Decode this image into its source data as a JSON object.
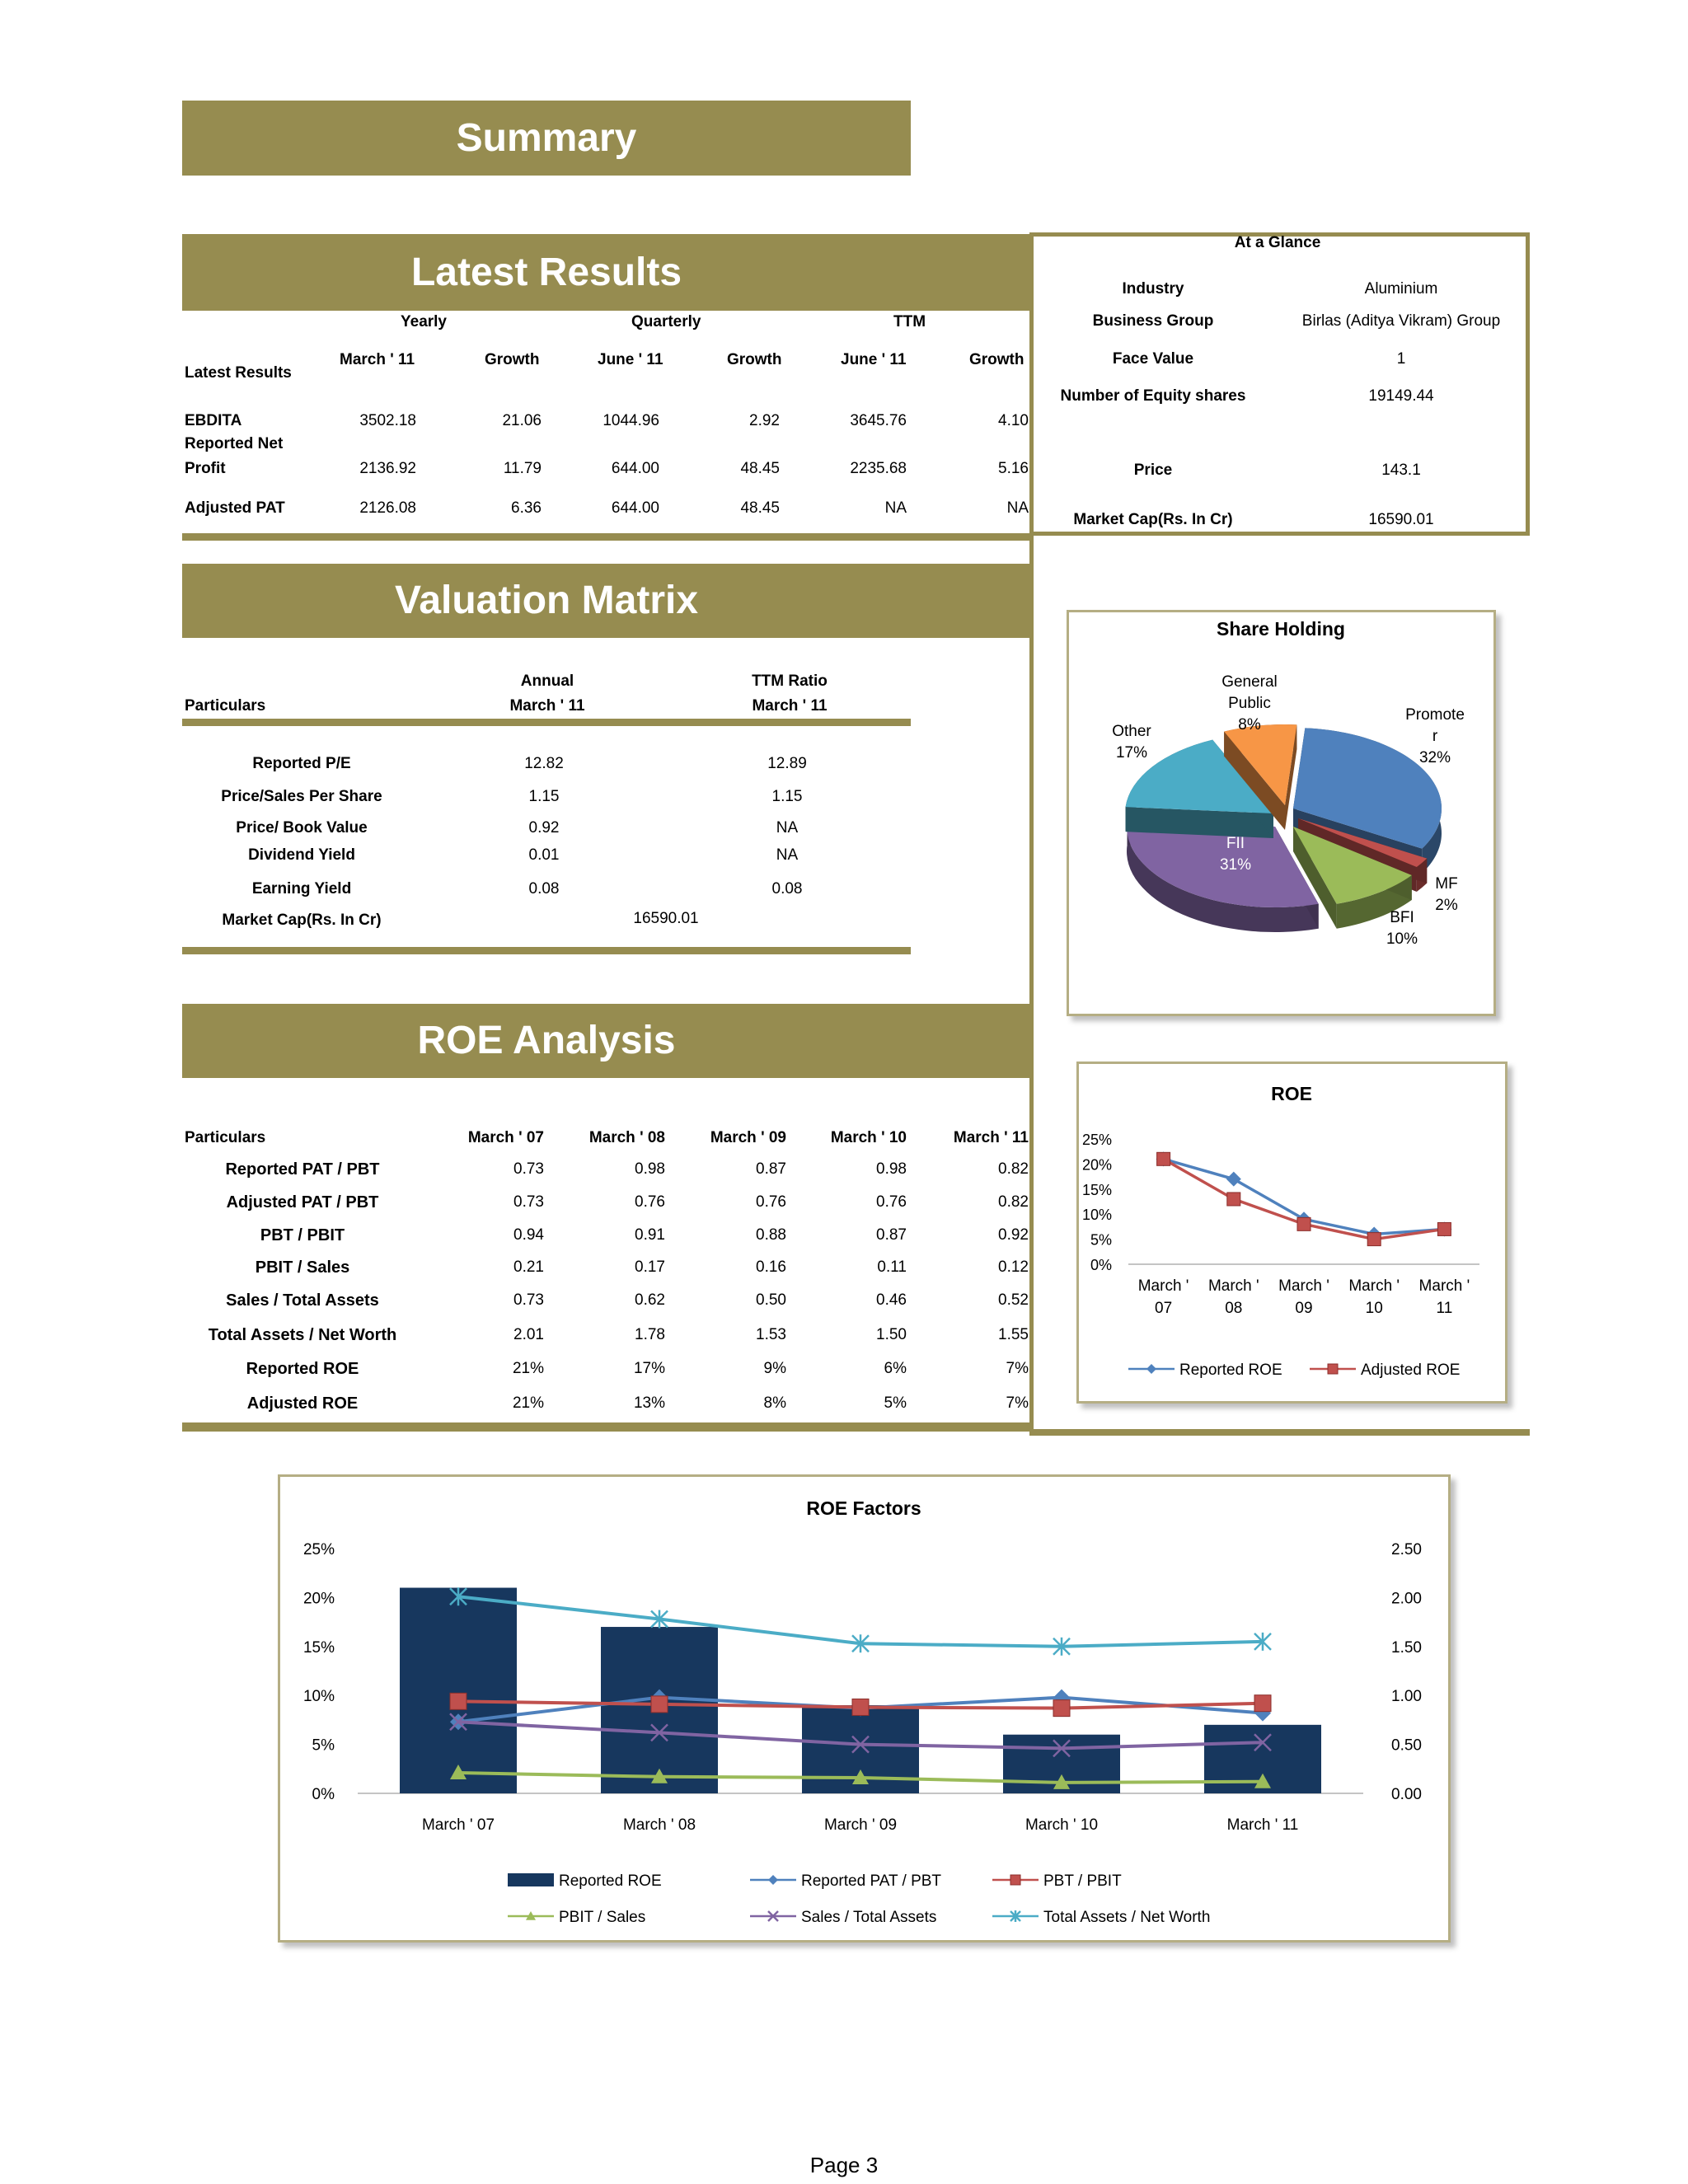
{
  "summary": {
    "title": "Summary"
  },
  "latest_results": {
    "title": "Latest Results",
    "groups": [
      "Yearly",
      "Quarterly",
      "TTM"
    ],
    "col_headers": [
      "March ' 11",
      "Growth",
      "June ' 11",
      "Growth",
      "June ' 11",
      "Growth"
    ],
    "row_header": "Latest Results",
    "rows": [
      {
        "label": "EBDITA",
        "values": [
          "3502.18",
          "21.06",
          "1044.96",
          "2.92",
          "3645.76",
          "4.10"
        ]
      },
      {
        "label": "Reported Net Profit",
        "label_line1": "Reported Net",
        "label_line2": "Profit",
        "values": [
          "2136.92",
          "11.79",
          "644.00",
          "48.45",
          "2235.68",
          "5.16"
        ]
      },
      {
        "label": "Adjusted PAT",
        "values": [
          "2126.08",
          "6.36",
          "644.00",
          "48.45",
          "NA",
          "NA"
        ]
      }
    ]
  },
  "glance": {
    "title": "At a Glance",
    "rows": [
      {
        "label": "Industry",
        "value": "Aluminium"
      },
      {
        "label": "Business Group",
        "value": "Birlas (Aditya Vikram) Group"
      },
      {
        "label": "Face Value",
        "value": "1"
      },
      {
        "label": "Number of Equity shares",
        "value": "19149.44"
      },
      {
        "label": "Price",
        "value": "143.1"
      },
      {
        "label": "Market Cap(Rs. In Cr)",
        "value": "16590.01"
      }
    ]
  },
  "valuation": {
    "title": "Valuation Matrix",
    "header_particulars": "Particulars",
    "col1_line1": "Annual",
    "col1_line2": "March ' 11",
    "col2_line1": "TTM Ratio",
    "col2_line2": "March ' 11",
    "rows": [
      {
        "label": "Reported P/E",
        "annual": "12.82",
        "ttm": "12.89"
      },
      {
        "label": "Price/Sales Per Share",
        "annual": "1.15",
        "ttm": "1.15"
      },
      {
        "label": "Price/ Book Value",
        "annual": "0.92",
        "ttm": "NA"
      },
      {
        "label": "Dividend Yield",
        "annual": "0.01",
        "ttm": "NA"
      },
      {
        "label": "Earning Yield",
        "annual": "0.08",
        "ttm": "0.08"
      }
    ],
    "mcap_label": "Market Cap(Rs. In Cr)",
    "mcap_value": "16590.01"
  },
  "roe_analysis": {
    "title": "ROE Analysis",
    "header_particulars": "Particulars",
    "years": [
      "March ' 07",
      "March ' 08",
      "March ' 09",
      "March ' 10",
      "March ' 11"
    ],
    "rows": [
      {
        "label": "Reported PAT / PBT",
        "values": [
          "0.73",
          "0.98",
          "0.87",
          "0.98",
          "0.82"
        ]
      },
      {
        "label": "Adjusted PAT / PBT",
        "values": [
          "0.73",
          "0.76",
          "0.76",
          "0.76",
          "0.82"
        ]
      },
      {
        "label": "PBT / PBIT",
        "values": [
          "0.94",
          "0.91",
          "0.88",
          "0.87",
          "0.92"
        ]
      },
      {
        "label": "PBIT / Sales",
        "values": [
          "0.21",
          "0.17",
          "0.16",
          "0.11",
          "0.12"
        ]
      },
      {
        "label": "Sales / Total Assets",
        "values": [
          "0.73",
          "0.62",
          "0.50",
          "0.46",
          "0.52"
        ]
      },
      {
        "label": "Total Assets / Net Worth",
        "values": [
          "2.01",
          "1.78",
          "1.53",
          "1.50",
          "1.55"
        ]
      },
      {
        "label": "Reported ROE",
        "values": [
          "21%",
          "17%",
          "9%",
          "6%",
          "7%"
        ]
      },
      {
        "label": "Adjusted ROE",
        "values": [
          "21%",
          "13%",
          "8%",
          "5%",
          "7%"
        ]
      }
    ]
  },
  "colors": {
    "band": "#968c50",
    "reported": "#4f81bd",
    "adjusted": "#c0504d",
    "pbit_sales": "#9bbb59",
    "sales_assets": "#8064a2",
    "assets_networth": "#4bacc6",
    "bar": "#17375e"
  },
  "footer": {
    "page": "Page 3"
  },
  "chart_data": [
    {
      "type": "pie",
      "title": "Share Holding",
      "slices": [
        {
          "name": "Promoter",
          "label_line1": "Promote",
          "label_line2": "r",
          "value": 32,
          "label": "32%",
          "color": "#4f81bd"
        },
        {
          "name": "MF",
          "value": 2,
          "label": "2%",
          "color": "#c0504d"
        },
        {
          "name": "BFI",
          "value": 10,
          "label": "10%",
          "color": "#9bbb59"
        },
        {
          "name": "FII",
          "value": 31,
          "label": "31%",
          "color": "#8064a2"
        },
        {
          "name": "Other",
          "value": 17,
          "label": "17%",
          "color": "#4bacc6"
        },
        {
          "name": "General Public",
          "label_line1": "General",
          "label_line2": "Public",
          "value": 8,
          "label": "8%",
          "color": "#f79646"
        }
      ]
    },
    {
      "type": "line",
      "title": "ROE",
      "categories": [
        "March ' 07",
        "March ' 08",
        "March ' 09",
        "March ' 10",
        "March ' 11"
      ],
      "ylim": [
        0,
        25
      ],
      "yticks": [
        "25%",
        "20%",
        "15%",
        "10%",
        "5%",
        "0%"
      ],
      "series": [
        {
          "name": "Reported ROE",
          "values": [
            21,
            17,
            9,
            6,
            7
          ]
        },
        {
          "name": "Adjusted ROE",
          "values": [
            21,
            13,
            8,
            5,
            7
          ]
        }
      ],
      "legend": "bottom"
    },
    {
      "type": "bar",
      "title": "ROE Factors",
      "categories": [
        "March ' 07",
        "March ' 08",
        "March ' 09",
        "March ' 10",
        "March ' 11"
      ],
      "ylim": [
        0,
        25
      ],
      "y2lim": [
        0,
        2.5
      ],
      "yticks": [
        "25%",
        "20%",
        "15%",
        "10%",
        "5%",
        "0%"
      ],
      "y2ticks": [
        "2.50",
        "2.00",
        "1.50",
        "1.00",
        "0.50",
        "0.00"
      ],
      "bars": {
        "name": "Reported ROE",
        "values": [
          21,
          17,
          9,
          6,
          7
        ]
      },
      "series": [
        {
          "name": "Reported PAT / PBT",
          "values": [
            0.73,
            0.98,
            0.87,
            0.98,
            0.82
          ],
          "marker": "diamond"
        },
        {
          "name": "PBT / PBIT",
          "values": [
            0.94,
            0.91,
            0.88,
            0.87,
            0.92
          ],
          "marker": "square"
        },
        {
          "name": "PBIT / Sales",
          "values": [
            0.21,
            0.17,
            0.16,
            0.11,
            0.12
          ],
          "marker": "triangle"
        },
        {
          "name": "Sales / Total Assets",
          "values": [
            0.73,
            0.62,
            0.5,
            0.46,
            0.52
          ],
          "marker": "x"
        },
        {
          "name": "Total Assets / Net Worth",
          "values": [
            2.01,
            1.78,
            1.53,
            1.5,
            1.55
          ],
          "marker": "star"
        }
      ],
      "legend": "bottom"
    }
  ]
}
